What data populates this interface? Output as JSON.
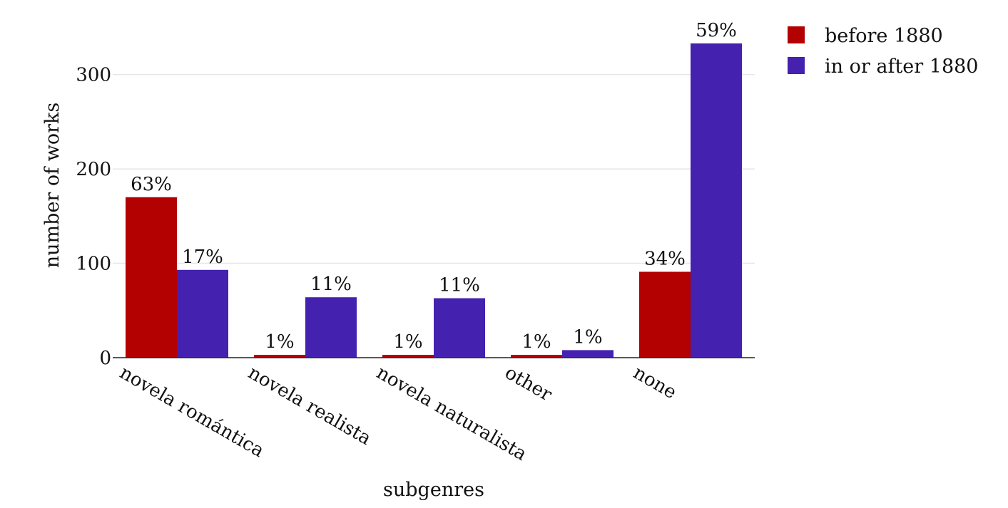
{
  "chart_data": {
    "type": "bar",
    "title": "",
    "xlabel": "subgenres",
    "ylabel": "number of works",
    "ylim": [
      0,
      345
    ],
    "yticks": [
      0,
      100,
      200,
      300
    ],
    "grid": true,
    "legend_position": "top-right",
    "categories": [
      "novela romántica",
      "novela realista",
      "novela naturalista",
      "other",
      "none"
    ],
    "series": [
      {
        "name": "before 1880",
        "color": "#b30000",
        "values": [
          170,
          3,
          3,
          3,
          91
        ],
        "labels": [
          "63%",
          "1%",
          "1%",
          "1%",
          "34%"
        ]
      },
      {
        "name": "in or after 1880",
        "color": "#4421af",
        "values": [
          93,
          64,
          63,
          8,
          333
        ],
        "labels": [
          "17%",
          "11%",
          "11%",
          "1%",
          "59%"
        ]
      }
    ]
  }
}
